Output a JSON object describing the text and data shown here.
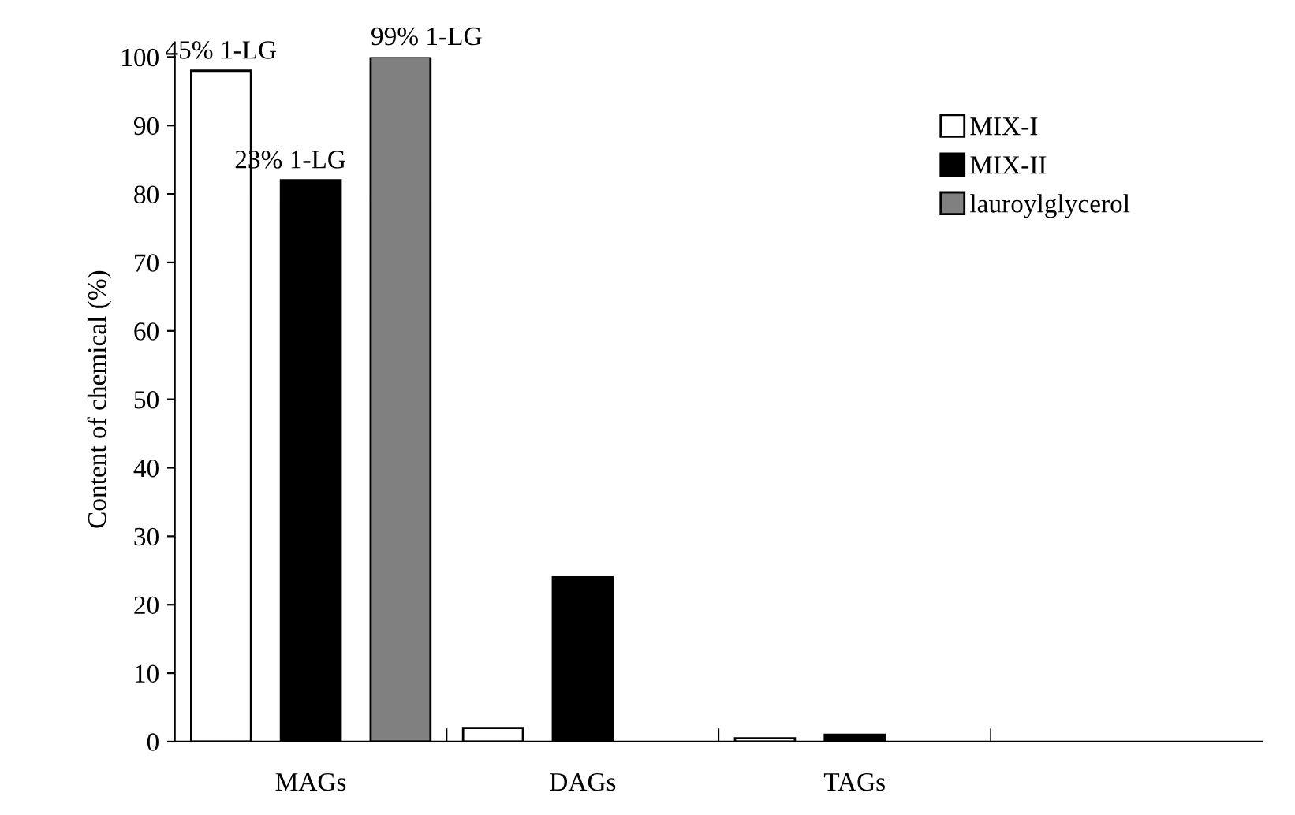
{
  "chart_data": {
    "type": "bar",
    "ylabel": "Content of chemical (%)",
    "categories": [
      "MAGs",
      "DAGs",
      "TAGs",
      null
    ],
    "series": [
      {
        "name": "MIX-I",
        "color": "#ffffff",
        "values": [
          98,
          2,
          0.5,
          null
        ]
      },
      {
        "name": "MIX-II",
        "color": "#000000",
        "values": [
          82,
          24,
          1,
          null
        ]
      },
      {
        "name": "lauroylglycerol",
        "color": "#808080",
        "values": [
          100,
          null,
          null,
          null
        ]
      }
    ],
    "annotations": [
      "45% 1-LG",
      "23% 1-LG",
      "99% 1-LG"
    ],
    "ylim": [
      0,
      100
    ],
    "yticks": [
      0,
      10,
      20,
      30,
      40,
      50,
      60,
      70,
      80,
      90,
      100
    ],
    "grid": false,
    "legend": "top right"
  }
}
